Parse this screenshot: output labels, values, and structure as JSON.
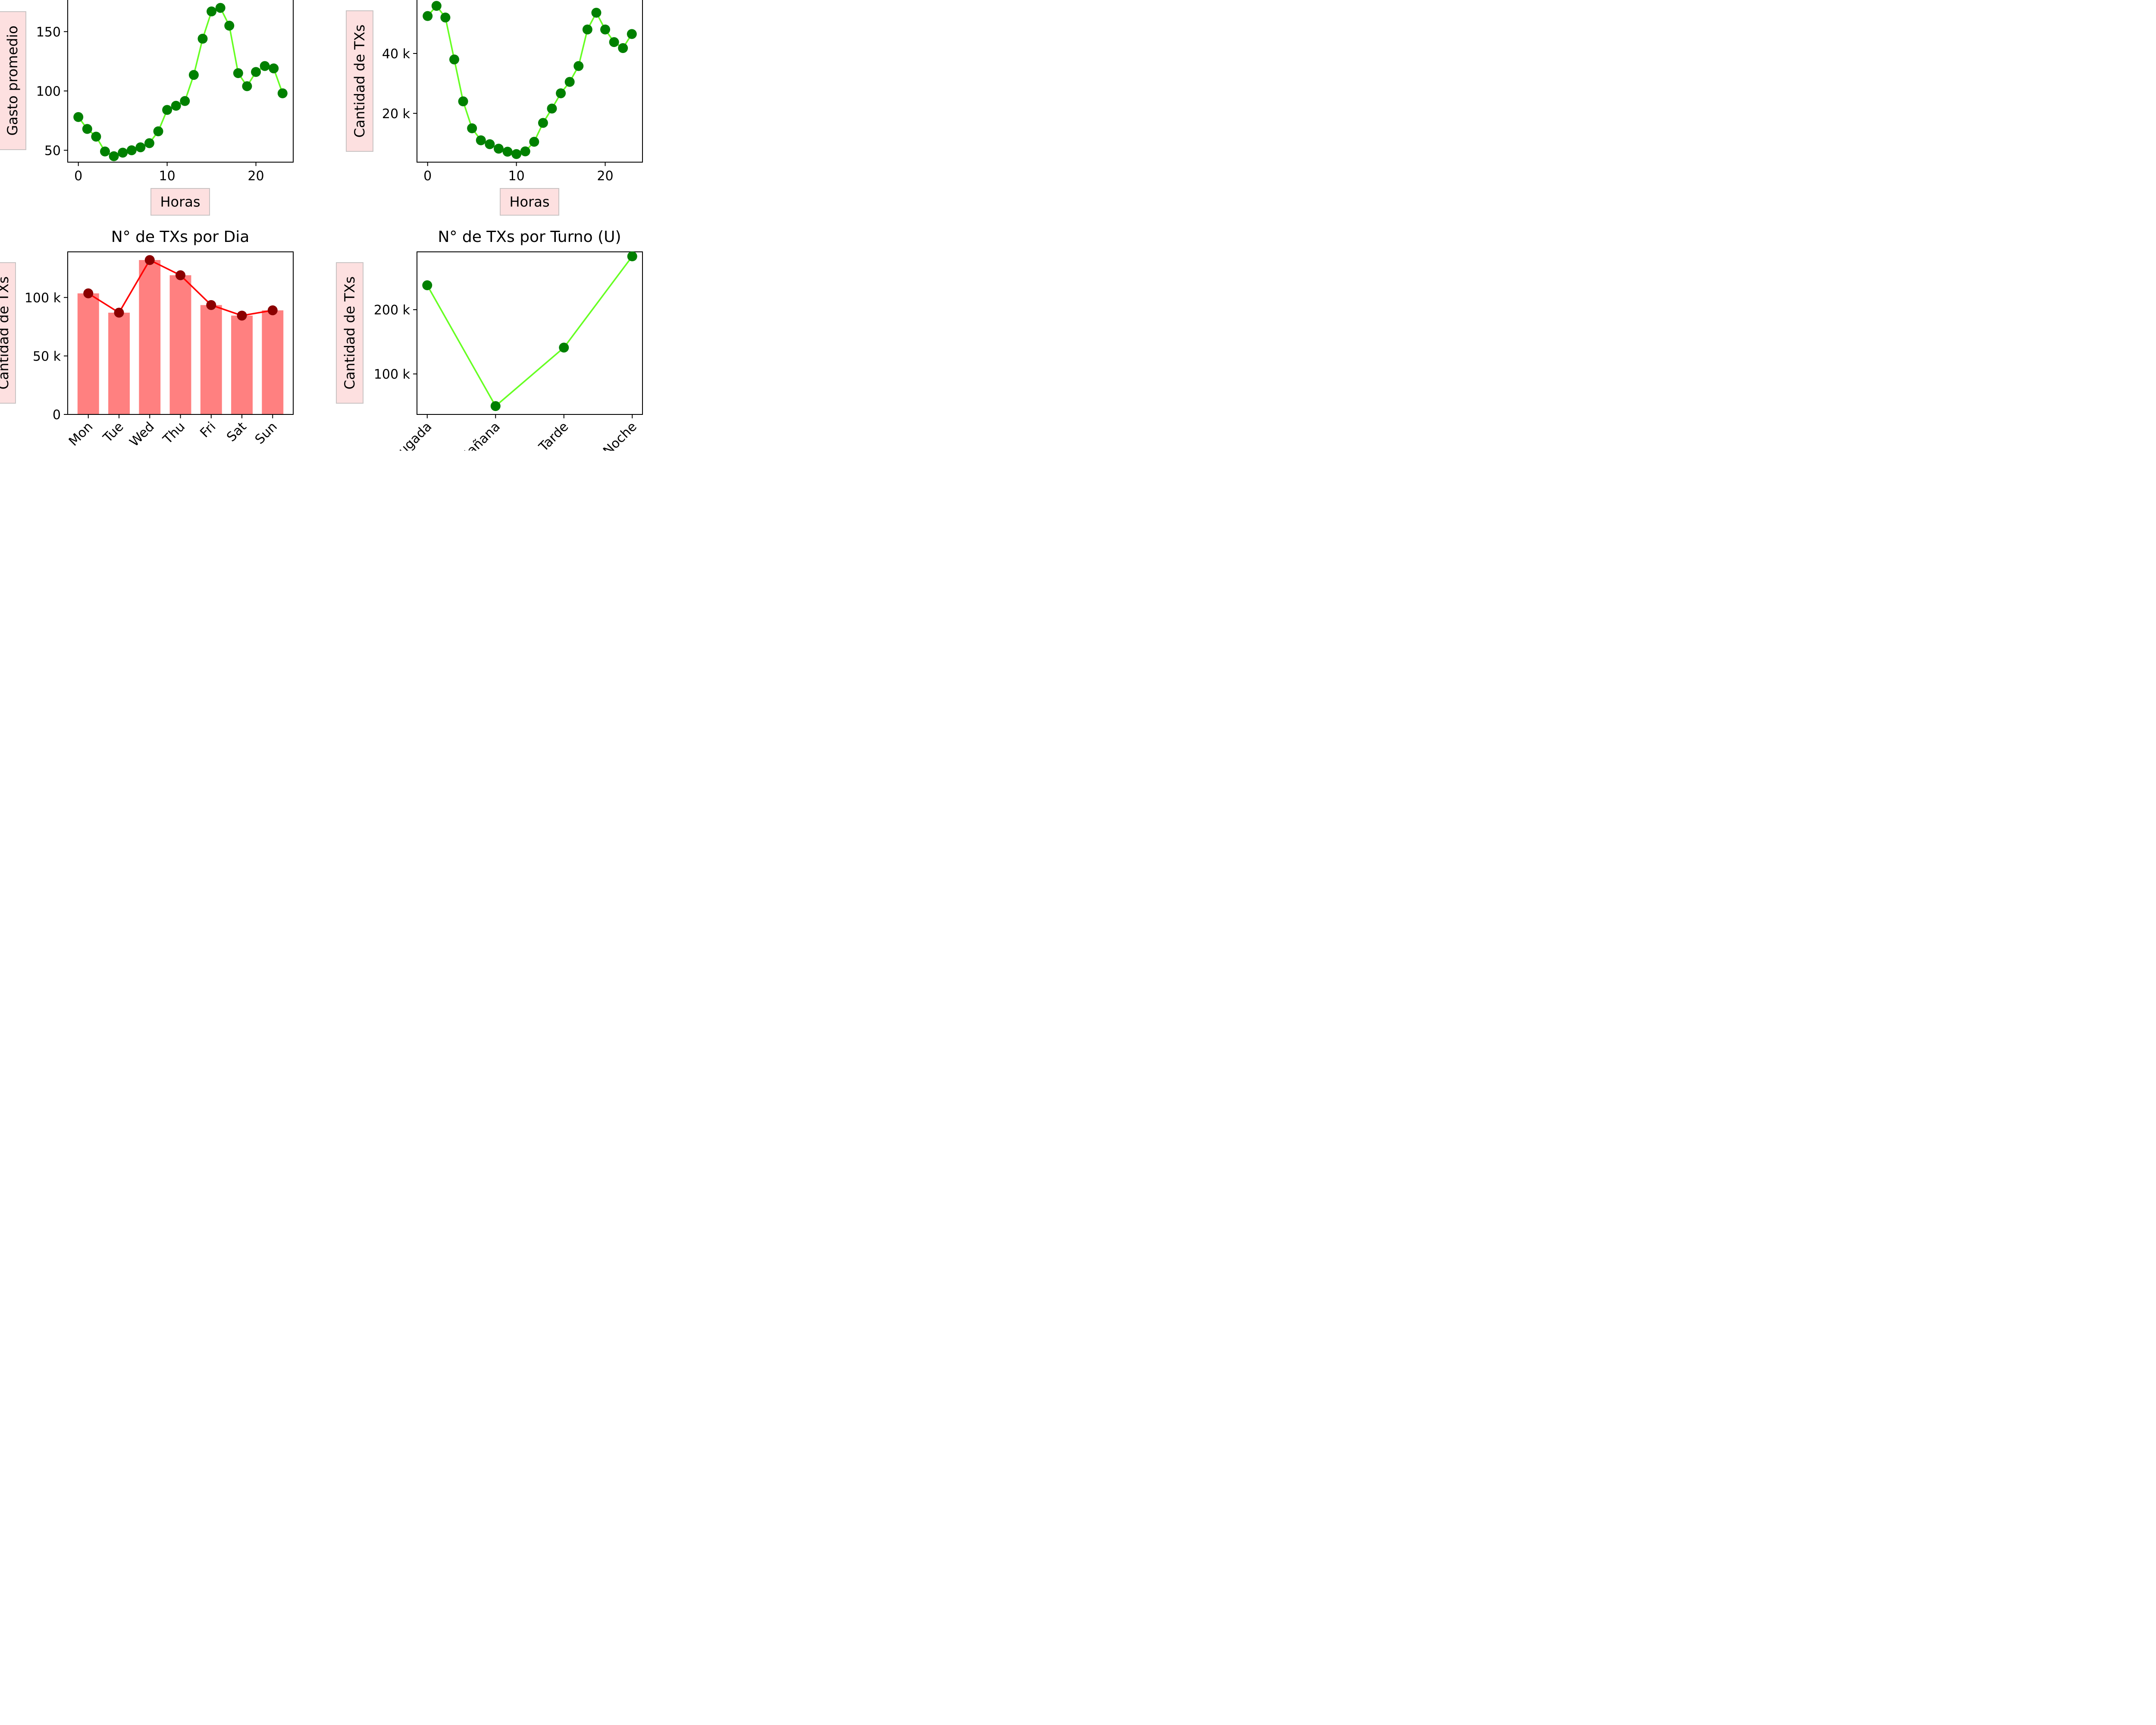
{
  "colors": {
    "line_green": "#66ff22",
    "marker_green": "#008000",
    "bar_pink": "#ff8080",
    "line_red": "#ff0000",
    "marker_darkred": "#8b0000",
    "label_bg": "#fde0e0"
  },
  "chart_data": [
    {
      "id": "avg-spend-by-hour",
      "type": "line",
      "title": "",
      "xlabel": "Horas",
      "ylabel": "Gasto promedio",
      "xlim": [
        -1.2,
        24.2
      ],
      "ylim": [
        40,
        177
      ],
      "xticks": [
        0,
        10,
        20
      ],
      "yticks": [
        50,
        100,
        150
      ],
      "ytick_labels": [
        "50",
        "100",
        "150"
      ],
      "grid": false,
      "x": [
        0,
        1,
        2,
        3,
        4,
        5,
        6,
        7,
        8,
        9,
        10,
        11,
        12,
        13,
        14,
        15,
        16,
        17,
        18,
        19,
        20,
        21,
        22,
        23
      ],
      "y": [
        78,
        68,
        61.5,
        49,
        45,
        48,
        50,
        52.5,
        56,
        66,
        84,
        87.5,
        91.5,
        113.5,
        144,
        167,
        170,
        155,
        115,
        104,
        116,
        121,
        119,
        98
      ]
    },
    {
      "id": "tx-count-by-hour",
      "type": "line",
      "title": "",
      "xlabel": "Horas",
      "ylabel": "Cantidad de TXs",
      "xlim": [
        -1.2,
        24.2
      ],
      "ylim": [
        3700,
        58000
      ],
      "xticks": [
        0,
        10,
        20
      ],
      "yticks": [
        20000,
        40000
      ],
      "ytick_labels": [
        "20 k",
        "40 k"
      ],
      "grid": false,
      "x": [
        0,
        1,
        2,
        3,
        4,
        5,
        6,
        7,
        8,
        9,
        10,
        11,
        12,
        13,
        14,
        15,
        16,
        17,
        18,
        19,
        20,
        21,
        22,
        23
      ],
      "y": [
        52500,
        55900,
        52000,
        38000,
        24000,
        15000,
        11000,
        9700,
        8200,
        7200,
        6400,
        7300,
        10500,
        16800,
        21600,
        26700,
        30500,
        35800,
        48000,
        53600,
        48000,
        43800,
        41800,
        46500
      ]
    },
    {
      "id": "tx-count-by-day",
      "type": "bar",
      "title": "N° de TXs por Dia",
      "xlabel": "",
      "ylabel": "Cantidad de TXs",
      "ylim": [
        0,
        139000
      ],
      "yticks": [
        0,
        50000,
        100000
      ],
      "ytick_labels": [
        "0",
        "50 k",
        "100 k"
      ],
      "grid": false,
      "categories": [
        "Mon",
        "Tue",
        "Wed",
        "Thu",
        "Fri",
        "Sat",
        "Sun"
      ],
      "values": [
        103500,
        87000,
        132000,
        119000,
        93500,
        84500,
        89000
      ]
    },
    {
      "id": "tx-count-by-shift",
      "type": "line",
      "title": "N° de TXs por Turno (U)",
      "xlabel": "",
      "ylabel": "Cantidad de TXs",
      "ylim": [
        37000,
        290000
      ],
      "yticks": [
        100000,
        200000
      ],
      "ytick_labels": [
        "100 k",
        "200 k"
      ],
      "grid": false,
      "categories": [
        "Madrugada",
        "Mañana",
        "Tarde",
        "Noche"
      ],
      "values": [
        238000,
        50000,
        141000,
        283000
      ]
    }
  ]
}
